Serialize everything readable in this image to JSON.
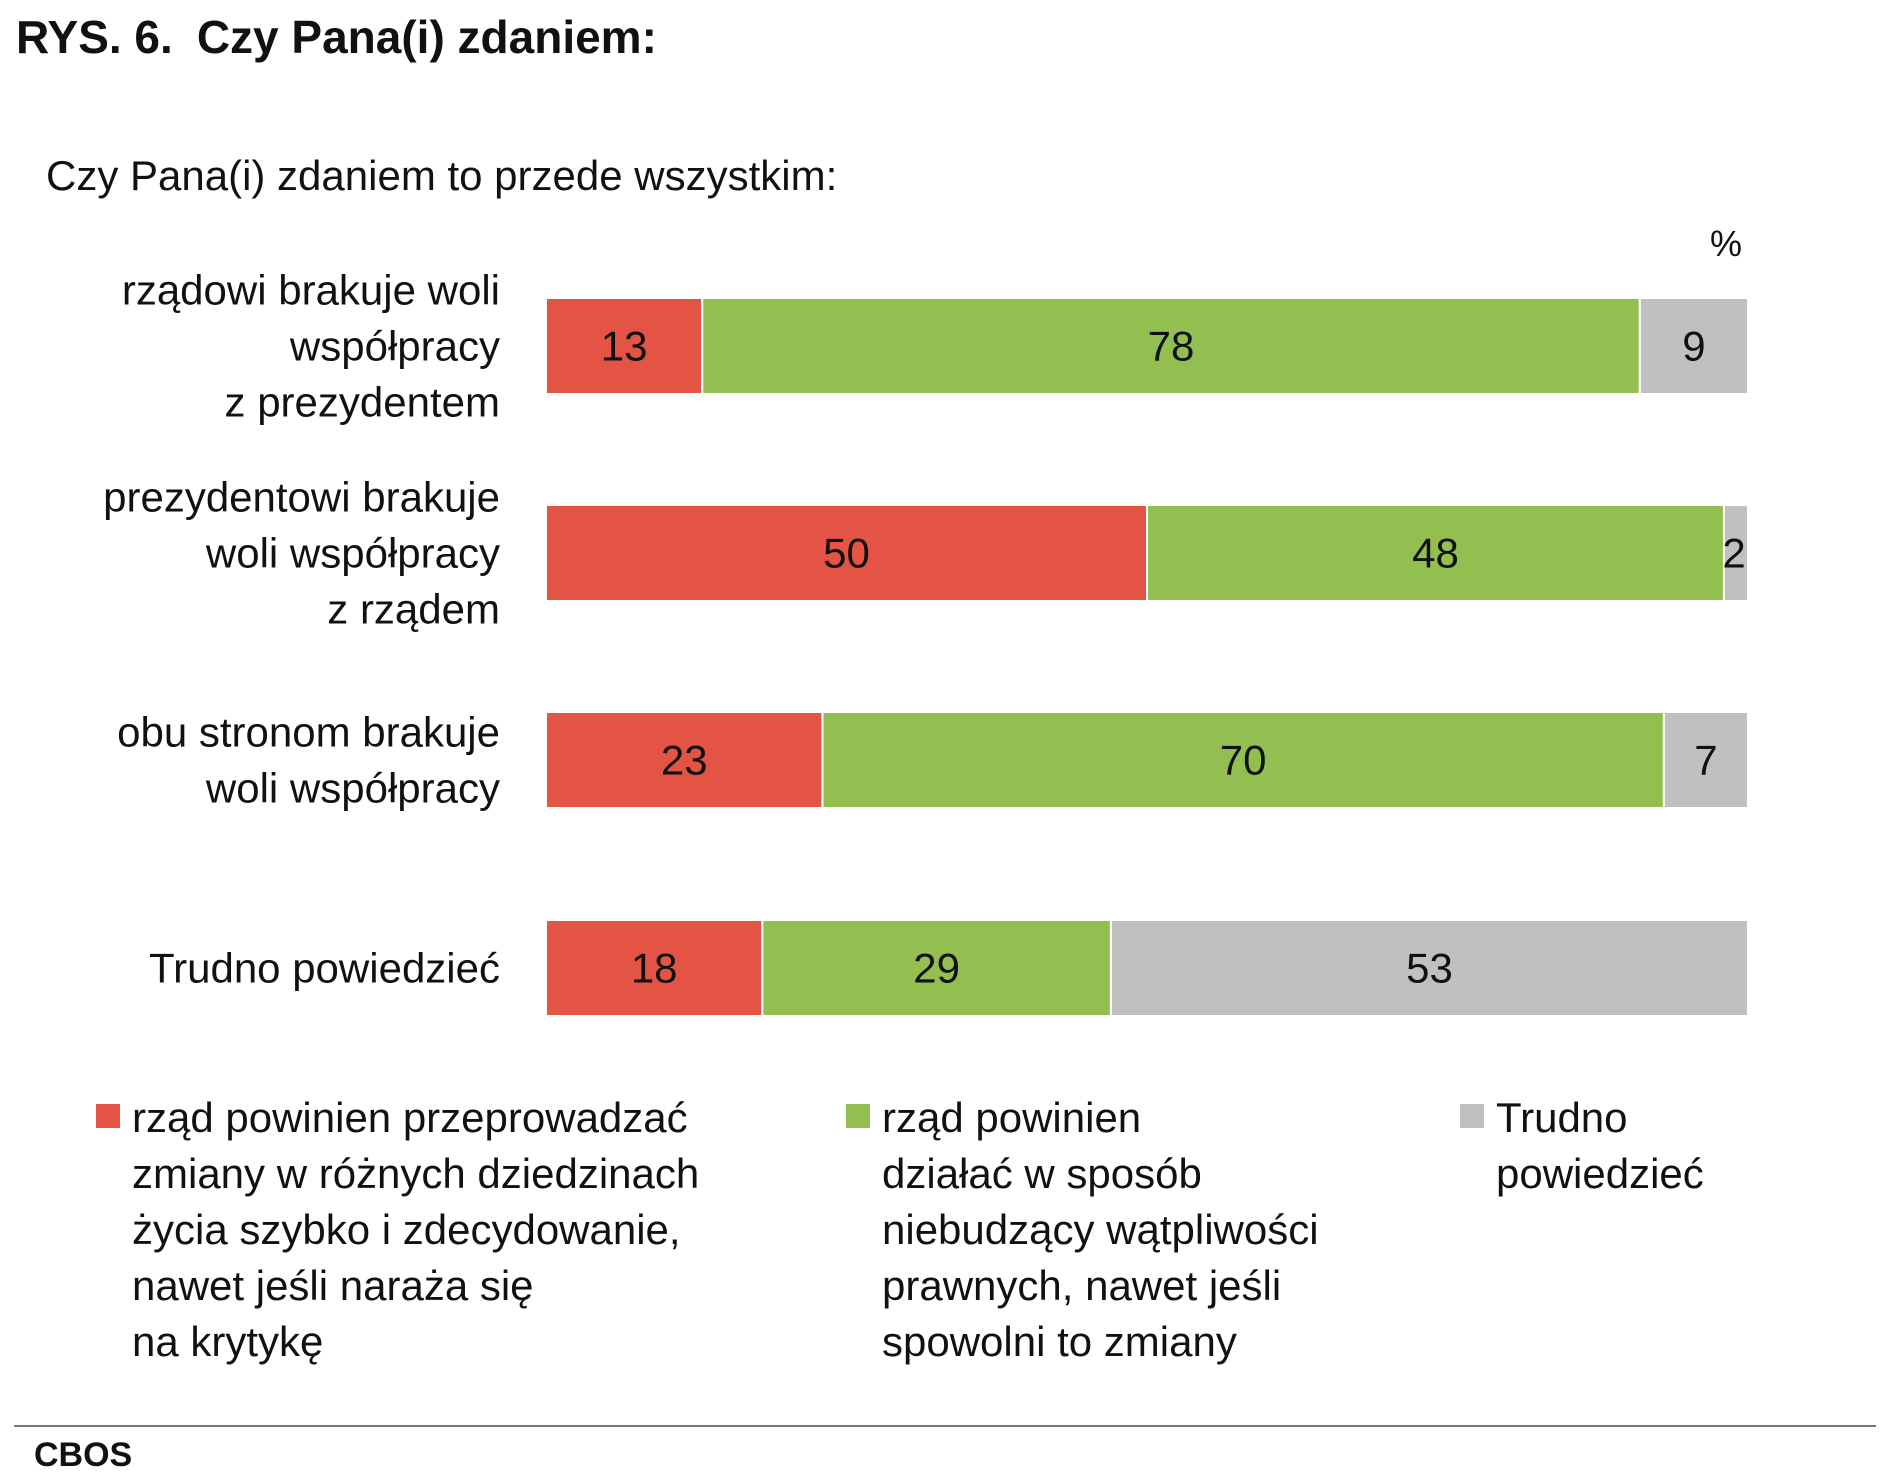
{
  "title": {
    "prefix": "RYS. 6.",
    "text": "Czy Pana(i) zdaniem:"
  },
  "question": "Czy Pana(i) zdaniem to przede wszystkim:",
  "source": "CBOS",
  "chart_data": {
    "type": "bar",
    "orientation": "horizontal",
    "stacked": true,
    "unit": "%",
    "categories": [
      "rządowi brakuje woli współpracy z prezydentem",
      "prezydentowi brakuje woli współpracy z rządem",
      "obu stronom brakuje woli współpracy",
      "Trudno powiedzieć"
    ],
    "category_lines": [
      [
        "rządowi brakuje woli",
        "współpracy",
        "z prezydentem"
      ],
      [
        "prezydentowi brakuje",
        "woli współpracy",
        "z rządem"
      ],
      [
        "obu stronom brakuje",
        "woli współpracy"
      ],
      [
        "Trudno powiedzieć"
      ]
    ],
    "series": [
      {
        "name": "rząd powinien przeprowadzać zmiany w różnych dziedzinach życia szybko i zdecydowanie, nawet jeśli naraża się na krytykę",
        "legend_text": "rząd powinien przeprowadzać\nzmiany w różnych dziedzinach\nżycia szybko i zdecydowanie,\nnawet jeśli naraża się\nna krytykę",
        "color": "#e45444",
        "values": [
          13,
          50,
          23,
          18
        ]
      },
      {
        "name": "rząd powinien działać w sposób niebudzący wątpliwości prawnych, nawet jeśli spowolni to zmiany",
        "legend_text": "rząd powinien\ndziałać w sposób\nniebudzący wątpliwości\nprawnych, nawet jeśli\nspowolni to zmiany",
        "color": "#92bf50",
        "values": [
          78,
          48,
          70,
          29
        ]
      },
      {
        "name": "Trudno powiedzieć",
        "legend_text": "Trudno\npowiedzieć",
        "color": "#c0c0c0",
        "values": [
          9,
          2,
          7,
          53
        ]
      }
    ],
    "xlim": [
      0,
      100
    ],
    "grid": false,
    "legend_position": "bottom"
  }
}
